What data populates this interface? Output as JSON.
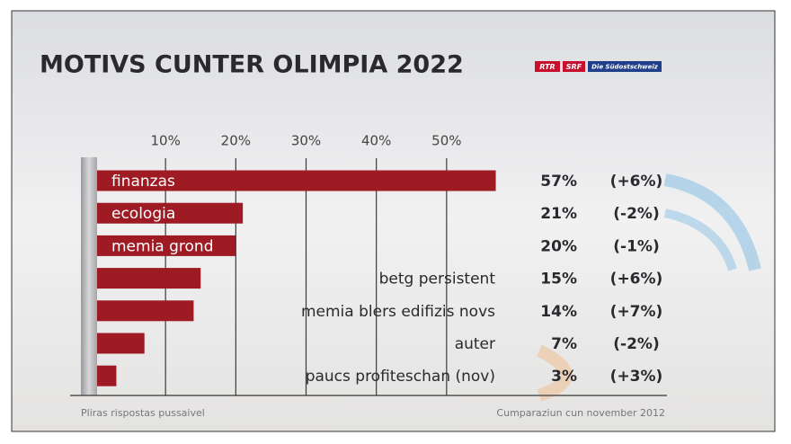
{
  "chart_data": {
    "type": "bar",
    "title": "MOTIVS CUNTER OLIMPIA 2022",
    "logos": [
      "RTR",
      "SRF",
      "Die Südostschweiz"
    ],
    "categories": [
      "finanzas",
      "ecologia",
      "memia grond",
      "betg persistent",
      "memia blers edifizis novs",
      "auter",
      "paucs profiteschan (nov)"
    ],
    "values": [
      57,
      21,
      20,
      15,
      14,
      7,
      3
    ],
    "value_labels": [
      "57%",
      "21%",
      "20%",
      "15%",
      "14%",
      "7%",
      "3%"
    ],
    "change_labels": [
      "(+6%)",
      "(-2%)",
      "(-1%)",
      "(+6%)",
      "(+7%)",
      "(-2%)",
      "(+3%)"
    ],
    "color": "#9e1b24",
    "xlim": [
      0,
      60
    ],
    "xticks": [
      {
        "value": 10,
        "label": "10%"
      },
      {
        "value": 20,
        "label": "20%"
      },
      {
        "value": 30,
        "label": "30%"
      },
      {
        "value": 40,
        "label": "40%"
      },
      {
        "value": 50,
        "label": "50%"
      }
    ],
    "grid": true,
    "footnote_left": "Pliras rispostas pussaivel",
    "footnote_right": "Cumparaziun cun november 2012"
  }
}
